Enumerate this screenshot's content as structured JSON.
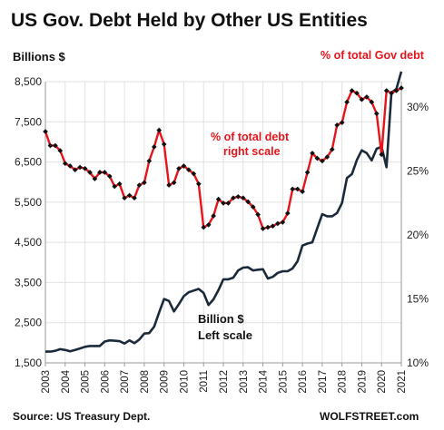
{
  "header": {
    "title": "US Gov. Debt Held by Other US Entities",
    "left_units": "Billions  $",
    "right_series_label": "% of total Gov debt"
  },
  "annotations": {
    "red_line1": "% of total debt",
    "red_line2": "right scale",
    "dark_line1": "Billion $",
    "dark_line2": "Left scale"
  },
  "footer": {
    "source": "Source: US Treasury Dept.",
    "brand": "WOLFSTREET.com"
  },
  "colors": {
    "billions_line": "#1b2a3b",
    "percent_line": "#e8141b",
    "marker": "#111111"
  },
  "chart_data": {
    "type": "line",
    "title": "US Gov. Debt Held by Other US Entities",
    "y_left": {
      "label": "Billions  $",
      "lim": [
        1500,
        8500
      ],
      "ticks": [
        1500,
        2500,
        3500,
        4500,
        5500,
        6500,
        7500,
        8500
      ],
      "tick_labels": [
        "1,500",
        "2,500",
        "3,500",
        "4,500",
        "5,500",
        "6,500",
        "7,500",
        "8,500"
      ]
    },
    "y_right": {
      "label": "% of total Gov debt",
      "lim": [
        10,
        32
      ],
      "ticks": [
        10,
        15,
        20,
        25,
        30
      ],
      "tick_labels": [
        "10%",
        "15%",
        "20%",
        "25%",
        "30%"
      ]
    },
    "x_ticks": [
      "2003",
      "2004",
      "2005",
      "2006",
      "2007",
      "2008",
      "2009",
      "2010",
      "2011",
      "2012",
      "2013",
      "2014",
      "2015",
      "2016",
      "2017",
      "2018",
      "2019",
      "2020",
      "2021"
    ],
    "grid": true,
    "series": [
      {
        "name": "Billion $",
        "axis": "left",
        "x": [
          2003.0,
          2003.25,
          2003.5,
          2003.75,
          2004.0,
          2004.25,
          2004.5,
          2004.75,
          2005.0,
          2005.25,
          2005.5,
          2005.75,
          2006.0,
          2006.25,
          2006.5,
          2006.75,
          2007.0,
          2007.25,
          2007.5,
          2007.75,
          2008.0,
          2008.25,
          2008.5,
          2008.75,
          2009.0,
          2009.25,
          2009.5,
          2009.75,
          2010.0,
          2010.25,
          2010.5,
          2010.75,
          2011.0,
          2011.25,
          2011.5,
          2011.75,
          2012.0,
          2012.25,
          2012.5,
          2012.75,
          2013.0,
          2013.25,
          2013.5,
          2013.75,
          2014.0,
          2014.25,
          2014.5,
          2014.75,
          2015.0,
          2015.25,
          2015.5,
          2015.75,
          2016.0,
          2016.25,
          2016.5,
          2016.75,
          2017.0,
          2017.25,
          2017.5,
          2017.75,
          2018.0,
          2018.25,
          2018.5,
          2018.75,
          2019.0,
          2019.25,
          2019.5,
          2019.75,
          2020.0,
          2020.25,
          2020.5,
          2020.75,
          2021.0
        ],
        "values": [
          1780,
          1780,
          1800,
          1840,
          1820,
          1790,
          1820,
          1860,
          1900,
          1920,
          1920,
          1920,
          2030,
          2060,
          2050,
          2040,
          1980,
          2060,
          1990,
          2080,
          2230,
          2240,
          2400,
          2750,
          3090,
          3040,
          2780,
          2960,
          3160,
          3260,
          3300,
          3340,
          3240,
          2940,
          3080,
          3310,
          3580,
          3580,
          3620,
          3800,
          3870,
          3880,
          3800,
          3820,
          3830,
          3600,
          3640,
          3740,
          3780,
          3780,
          3850,
          4030,
          4420,
          4470,
          4500,
          4850,
          5200,
          5150,
          5150,
          5230,
          5480,
          6100,
          6200,
          6550,
          6790,
          6720,
          6540,
          6830,
          6880,
          6370,
          8230,
          8320,
          8750
        ]
      },
      {
        "name": "% of total debt",
        "axis": "right",
        "x": [
          2003.0,
          2003.25,
          2003.5,
          2003.75,
          2004.0,
          2004.25,
          2004.5,
          2004.75,
          2005.0,
          2005.25,
          2005.5,
          2005.75,
          2006.0,
          2006.25,
          2006.5,
          2006.75,
          2007.0,
          2007.25,
          2007.5,
          2007.75,
          2008.0,
          2008.25,
          2008.5,
          2008.75,
          2009.0,
          2009.25,
          2009.5,
          2009.75,
          2010.0,
          2010.25,
          2010.5,
          2010.75,
          2011.0,
          2011.25,
          2011.5,
          2011.75,
          2012.0,
          2012.25,
          2012.5,
          2012.75,
          2013.0,
          2013.25,
          2013.5,
          2013.75,
          2014.0,
          2014.25,
          2014.5,
          2014.75,
          2015.0,
          2015.25,
          2015.5,
          2015.75,
          2016.0,
          2016.25,
          2016.5,
          2016.75,
          2017.0,
          2017.25,
          2017.5,
          2017.75,
          2018.0,
          2018.25,
          2018.5,
          2018.75,
          2019.0,
          2019.25,
          2019.5,
          2019.75,
          2020.0,
          2020.25,
          2020.5,
          2020.75,
          2021.0
        ],
        "values": [
          28.1,
          27.0,
          27.0,
          26.6,
          25.6,
          25.4,
          25.1,
          25.3,
          25.2,
          24.9,
          24.4,
          24.9,
          24.9,
          24.6,
          23.8,
          24.0,
          22.9,
          23.1,
          22.9,
          23.9,
          24.1,
          25.8,
          26.9,
          28.2,
          27.1,
          23.9,
          24.1,
          25.2,
          25.4,
          25.1,
          24.8,
          24.0,
          20.6,
          20.8,
          21.5,
          22.8,
          22.5,
          22.5,
          22.9,
          23.0,
          22.9,
          22.6,
          22.2,
          21.6,
          20.5,
          20.6,
          20.7,
          20.9,
          21.0,
          21.7,
          23.6,
          23.6,
          23.4,
          24.9,
          26.4,
          26.0,
          25.8,
          26.1,
          26.7,
          28.6,
          28.8,
          30.4,
          31.3,
          31.1,
          30.6,
          30.8,
          30.4,
          29.5,
          26.3,
          31.3,
          31.1,
          31.3,
          31.5
        ]
      }
    ]
  }
}
